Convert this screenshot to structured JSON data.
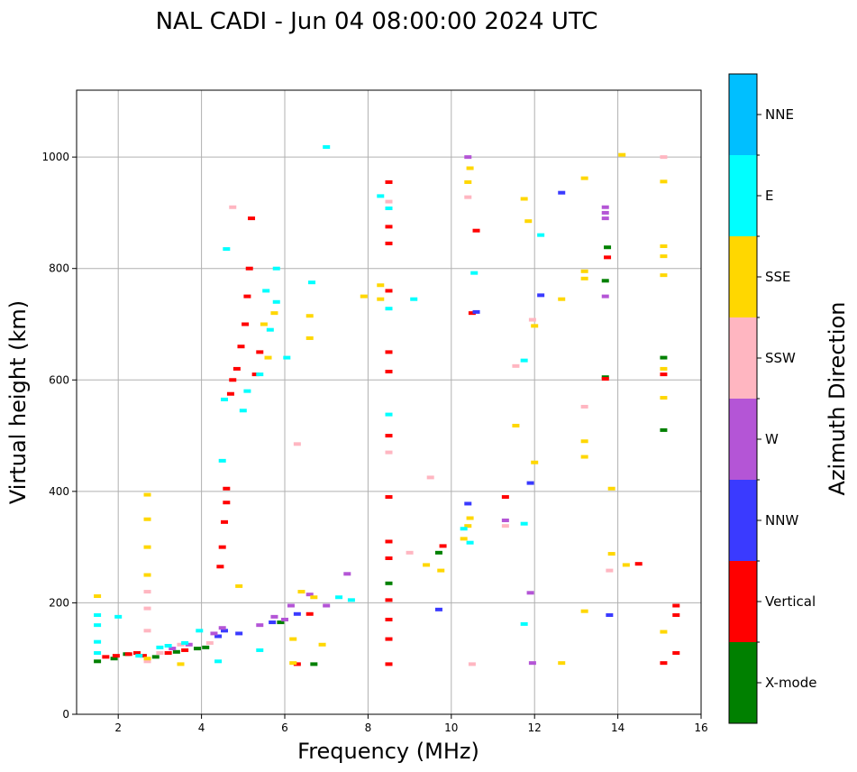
{
  "chart_data": {
    "type": "scatter",
    "title": "NAL CADI - Jun 04 08:00:00 2024 UTC",
    "xlabel": "Frequency (MHz)",
    "ylabel": "Virtual height (km)",
    "xlim": [
      1,
      16
    ],
    "ylim": [
      0,
      1120
    ],
    "xticks": [
      2,
      4,
      6,
      8,
      10,
      12,
      14,
      16
    ],
    "yticks": [
      0,
      200,
      400,
      600,
      800,
      1000
    ],
    "grid": true,
    "colorbar": {
      "label": "Azimuth Direction",
      "categories": [
        "X-mode",
        "Vertical",
        "NNW",
        "W",
        "SSW",
        "SSE",
        "E",
        "NNE"
      ],
      "colors": [
        "#008000",
        "#ff0000",
        "#3a3aff",
        "#b455d6",
        "#ffb6c1",
        "#ffd700",
        "#00ffff",
        "#00bfff"
      ]
    },
    "series": [
      {
        "name": "X-mode",
        "points": [
          [
            1.5,
            95
          ],
          [
            1.9,
            100
          ],
          [
            2.2,
            108
          ],
          [
            2.9,
            103
          ],
          [
            3.4,
            112
          ],
          [
            3.9,
            118
          ],
          [
            4.1,
            120
          ],
          [
            5.9,
            165
          ],
          [
            6.7,
            90
          ],
          [
            8.5,
            235
          ],
          [
            9.7,
            290
          ],
          [
            13.7,
            605
          ],
          [
            13.7,
            778
          ],
          [
            13.75,
            838
          ],
          [
            15.1,
            640
          ],
          [
            15.1,
            510
          ]
        ]
      },
      {
        "name": "Vertical",
        "points": [
          [
            1.7,
            103
          ],
          [
            1.95,
            105
          ],
          [
            2.25,
            108
          ],
          [
            2.45,
            110
          ],
          [
            2.6,
            105
          ],
          [
            3.2,
            110
          ],
          [
            3.6,
            115
          ],
          [
            4.45,
            265
          ],
          [
            4.5,
            300
          ],
          [
            4.55,
            345
          ],
          [
            4.6,
            380
          ],
          [
            4.6,
            405
          ],
          [
            4.7,
            575
          ],
          [
            4.75,
            600
          ],
          [
            4.85,
            620
          ],
          [
            4.95,
            660
          ],
          [
            5.05,
            700
          ],
          [
            5.1,
            750
          ],
          [
            5.15,
            800
          ],
          [
            5.2,
            890
          ],
          [
            5.3,
            610
          ],
          [
            5.4,
            650
          ],
          [
            6.3,
            90
          ],
          [
            6.6,
            180
          ],
          [
            8.5,
            90
          ],
          [
            8.5,
            135
          ],
          [
            8.5,
            170
          ],
          [
            8.5,
            205
          ],
          [
            8.5,
            280
          ],
          [
            8.5,
            310
          ],
          [
            8.5,
            390
          ],
          [
            8.5,
            500
          ],
          [
            8.5,
            615
          ],
          [
            8.5,
            650
          ],
          [
            8.5,
            760
          ],
          [
            8.5,
            845
          ],
          [
            8.5,
            875
          ],
          [
            8.5,
            955
          ],
          [
            9.8,
            302
          ],
          [
            10.5,
            720
          ],
          [
            10.6,
            868
          ],
          [
            11.3,
            390
          ],
          [
            13.7,
            602
          ],
          [
            13.75,
            820
          ],
          [
            14.5,
            270
          ],
          [
            15.1,
            92
          ],
          [
            15.1,
            610
          ],
          [
            15.4,
            110
          ],
          [
            15.4,
            178
          ],
          [
            15.4,
            195
          ]
        ]
      },
      {
        "name": "NNW",
        "points": [
          [
            4.4,
            140
          ],
          [
            4.55,
            150
          ],
          [
            4.9,
            145
          ],
          [
            5.7,
            165
          ],
          [
            6.3,
            180
          ],
          [
            9.7,
            188
          ],
          [
            10.4,
            378
          ],
          [
            10.6,
            722
          ],
          [
            11.9,
            415
          ],
          [
            12.15,
            752
          ],
          [
            12.65,
            936
          ],
          [
            13.8,
            178
          ]
        ]
      },
      {
        "name": "W",
        "points": [
          [
            3.3,
            118
          ],
          [
            3.7,
            125
          ],
          [
            4.3,
            145
          ],
          [
            4.5,
            155
          ],
          [
            5.4,
            160
          ],
          [
            5.75,
            175
          ],
          [
            6.0,
            170
          ],
          [
            6.15,
            195
          ],
          [
            6.6,
            215
          ],
          [
            7.0,
            195
          ],
          [
            7.5,
            252
          ],
          [
            10.4,
            1000
          ],
          [
            11.3,
            348
          ],
          [
            11.9,
            218
          ],
          [
            11.95,
            92
          ],
          [
            13.7,
            750
          ],
          [
            13.7,
            890
          ],
          [
            13.7,
            900
          ],
          [
            13.7,
            910
          ]
        ]
      },
      {
        "name": "SSW",
        "points": [
          [
            2.7,
            95
          ],
          [
            2.7,
            150
          ],
          [
            2.7,
            190
          ],
          [
            2.7,
            220
          ],
          [
            3.0,
            110
          ],
          [
            3.5,
            125
          ],
          [
            4.2,
            128
          ],
          [
            4.75,
            910
          ],
          [
            6.3,
            485
          ],
          [
            8.5,
            470
          ],
          [
            8.5,
            920
          ],
          [
            9.0,
            290
          ],
          [
            9.5,
            425
          ],
          [
            10.4,
            928
          ],
          [
            10.5,
            90
          ],
          [
            11.3,
            338
          ],
          [
            11.55,
            625
          ],
          [
            11.95,
            708
          ],
          [
            13.2,
            552
          ],
          [
            13.8,
            258
          ],
          [
            15.1,
            1000
          ]
        ]
      },
      {
        "name": "SSE",
        "points": [
          [
            1.5,
            212
          ],
          [
            2.7,
            100
          ],
          [
            2.7,
            250
          ],
          [
            2.7,
            300
          ],
          [
            2.7,
            350
          ],
          [
            2.7,
            394
          ],
          [
            3.5,
            90
          ],
          [
            4.9,
            230
          ],
          [
            5.5,
            700
          ],
          [
            5.6,
            640
          ],
          [
            5.75,
            720
          ],
          [
            6.2,
            135
          ],
          [
            6.2,
            92
          ],
          [
            6.4,
            220
          ],
          [
            6.6,
            675
          ],
          [
            6.6,
            715
          ],
          [
            6.7,
            210
          ],
          [
            6.9,
            125
          ],
          [
            7.9,
            750
          ],
          [
            8.3,
            745
          ],
          [
            8.3,
            770
          ],
          [
            9.4,
            268
          ],
          [
            9.75,
            258
          ],
          [
            10.3,
            315
          ],
          [
            10.4,
            338
          ],
          [
            10.45,
            352
          ],
          [
            10.4,
            955
          ],
          [
            10.45,
            980
          ],
          [
            11.55,
            518
          ],
          [
            11.75,
            925
          ],
          [
            11.85,
            885
          ],
          [
            12.0,
            452
          ],
          [
            12.0,
            697
          ],
          [
            12.65,
            92
          ],
          [
            12.65,
            745
          ],
          [
            13.2,
            185
          ],
          [
            13.2,
            462
          ],
          [
            13.2,
            490
          ],
          [
            13.2,
            782
          ],
          [
            13.2,
            795
          ],
          [
            13.2,
            962
          ],
          [
            13.85,
            405
          ],
          [
            13.85,
            288
          ],
          [
            14.1,
            1004
          ],
          [
            14.2,
            268
          ],
          [
            15.1,
            148
          ],
          [
            15.1,
            568
          ],
          [
            15.1,
            620
          ],
          [
            15.1,
            788
          ],
          [
            15.1,
            822
          ],
          [
            15.1,
            840
          ],
          [
            15.1,
            956
          ]
        ]
      },
      {
        "name": "E",
        "points": [
          [
            1.5,
            110
          ],
          [
            1.5,
            130
          ],
          [
            1.5,
            160
          ],
          [
            1.5,
            178
          ],
          [
            2.0,
            175
          ],
          [
            2.5,
            105
          ],
          [
            3.0,
            120
          ],
          [
            3.2,
            123
          ],
          [
            3.6,
            128
          ],
          [
            3.95,
            150
          ],
          [
            4.4,
            95
          ],
          [
            4.5,
            455
          ],
          [
            4.55,
            565
          ],
          [
            4.6,
            835
          ],
          [
            5.0,
            545
          ],
          [
            5.1,
            580
          ],
          [
            5.4,
            115
          ],
          [
            5.4,
            610
          ],
          [
            5.55,
            760
          ],
          [
            5.65,
            690
          ],
          [
            5.8,
            800
          ],
          [
            5.8,
            740
          ],
          [
            6.05,
            640
          ],
          [
            6.65,
            775
          ],
          [
            7.0,
            1018
          ],
          [
            7.3,
            210
          ],
          [
            7.6,
            205
          ],
          [
            8.3,
            930
          ],
          [
            8.5,
            538
          ],
          [
            8.5,
            728
          ],
          [
            8.5,
            908
          ],
          [
            9.1,
            745
          ],
          [
            10.3,
            333
          ],
          [
            10.45,
            308
          ],
          [
            10.55,
            792
          ],
          [
            11.75,
            635
          ],
          [
            11.75,
            342
          ],
          [
            11.75,
            162
          ],
          [
            12.15,
            860
          ]
        ]
      },
      {
        "name": "NNE",
        "points": []
      }
    ]
  }
}
